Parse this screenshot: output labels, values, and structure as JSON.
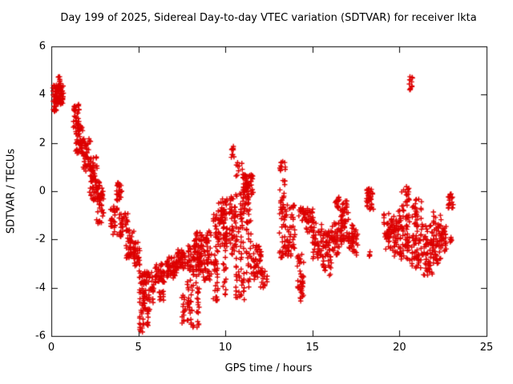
{
  "chart_data": {
    "type": "scatter",
    "title": "Day 199 of 2025, Sidereal Day-to-day VTEC variation (SDTVAR) for receiver lkta",
    "xlabel": "GPS time / hours",
    "ylabel": "SDTVAR / TECUs",
    "xlim": [
      0,
      25
    ],
    "ylim": [
      -6,
      6
    ],
    "x_ticks": [
      0,
      5,
      10,
      15,
      20,
      25
    ],
    "y_ticks": [
      -6,
      -4,
      -2,
      0,
      2,
      4,
      6
    ],
    "grid": false,
    "legend": "none",
    "marker": "plus",
    "marker_color": "#dd0000",
    "axis_color": "#000000",
    "background": "#ffffff",
    "clusters": [
      {
        "t": [
          0.05,
          0.7
        ],
        "v": [
          3.6,
          4.4
        ],
        "n": 90
      },
      {
        "t": [
          0.4,
          0.55
        ],
        "v": [
          4.3,
          4.75
        ],
        "n": 12
      },
      {
        "t": [
          0.1,
          0.3
        ],
        "v": [
          3.3,
          3.6
        ],
        "n": 10
      },
      {
        "t": [
          1.25,
          1.6
        ],
        "v": [
          2.6,
          3.6
        ],
        "n": 35
      },
      {
        "t": [
          1.4,
          1.8
        ],
        "v": [
          1.5,
          2.7
        ],
        "n": 45
      },
      {
        "t": [
          1.8,
          2.3
        ],
        "v": [
          0.8,
          2.2
        ],
        "n": 50
      },
      {
        "t": [
          2.2,
          2.7
        ],
        "v": [
          -0.4,
          1.5
        ],
        "n": 60
      },
      {
        "t": [
          2.6,
          3.0
        ],
        "v": [
          -1.4,
          0.4
        ],
        "n": 50
      },
      {
        "t": [
          3.4,
          3.8
        ],
        "v": [
          -1.8,
          -0.6
        ],
        "n": 30
      },
      {
        "t": [
          3.7,
          4.05
        ],
        "v": [
          -0.4,
          0.35
        ],
        "n": 25
      },
      {
        "t": [
          3.9,
          4.4
        ],
        "v": [
          -2.0,
          -0.9
        ],
        "n": 35
      },
      {
        "t": [
          4.3,
          4.8
        ],
        "v": [
          -2.8,
          -1.6
        ],
        "n": 40
      },
      {
        "t": [
          4.7,
          5.1
        ],
        "v": [
          -3.1,
          -2.1
        ],
        "n": 30
      },
      {
        "t": [
          5.05,
          5.35
        ],
        "v": [
          -5.85,
          -3.3
        ],
        "n": 45
      },
      {
        "t": [
          5.3,
          5.9
        ],
        "v": [
          -4.9,
          -3.3
        ],
        "n": 55
      },
      {
        "t": [
          5.5,
          5.7
        ],
        "v": [
          -5.6,
          -4.9
        ],
        "n": 10
      },
      {
        "t": [
          5.9,
          6.5
        ],
        "v": [
          -3.8,
          -3.0
        ],
        "n": 45
      },
      {
        "t": [
          6.2,
          6.6
        ],
        "v": [
          -4.7,
          -4.1
        ],
        "n": 12
      },
      {
        "t": [
          6.6,
          7.2
        ],
        "v": [
          -3.6,
          -2.7
        ],
        "n": 55
      },
      {
        "t": [
          7.2,
          7.7
        ],
        "v": [
          -3.3,
          -2.4
        ],
        "n": 45
      },
      {
        "t": [
          7.5,
          7.75
        ],
        "v": [
          -5.5,
          -4.3
        ],
        "n": 15
      },
      {
        "t": [
          7.8,
          8.2
        ],
        "v": [
          -5.7,
          -2.2
        ],
        "n": 60
      },
      {
        "t": [
          8.2,
          8.7
        ],
        "v": [
          -3.3,
          -1.7
        ],
        "n": 70
      },
      {
        "t": [
          8.3,
          8.5
        ],
        "v": [
          -5.7,
          -3.4
        ],
        "n": 20
      },
      {
        "t": [
          8.7,
          9.2
        ],
        "v": [
          -3.7,
          -1.6
        ],
        "n": 55
      },
      {
        "t": [
          9.3,
          9.6
        ],
        "v": [
          -4.6,
          -0.7
        ],
        "n": 50
      },
      {
        "t": [
          9.6,
          10.1
        ],
        "v": [
          -2.3,
          -0.3
        ],
        "n": 70
      },
      {
        "t": [
          9.85,
          10.05
        ],
        "v": [
          -4.3,
          -2.3
        ],
        "n": 15
      },
      {
        "t": [
          10.2,
          10.6
        ],
        "v": [
          -2.7,
          -0.2
        ],
        "n": 45
      },
      {
        "t": [
          10.3,
          10.5
        ],
        "v": [
          1.4,
          1.9
        ],
        "n": 10
      },
      {
        "t": [
          10.6,
          11.1
        ],
        "v": [
          -4.5,
          1.2
        ],
        "n": 80
      },
      {
        "t": [
          11.0,
          11.6
        ],
        "v": [
          -1.0,
          0.7
        ],
        "n": 70
      },
      {
        "t": [
          11.2,
          11.5
        ],
        "v": [
          -4.0,
          -1.2
        ],
        "n": 30
      },
      {
        "t": [
          11.6,
          12.1
        ],
        "v": [
          -3.7,
          -2.2
        ],
        "n": 45
      },
      {
        "t": [
          12.0,
          12.4
        ],
        "v": [
          -4.0,
          -3.2
        ],
        "n": 18
      },
      {
        "t": [
          13.1,
          13.45
        ],
        "v": [
          -2.9,
          1.25
        ],
        "n": 55
      },
      {
        "t": [
          13.4,
          14.0
        ],
        "v": [
          -2.7,
          -0.5
        ],
        "n": 55
      },
      {
        "t": [
          14.1,
          14.5
        ],
        "v": [
          -4.6,
          -2.6
        ],
        "n": 40
      },
      {
        "t": [
          14.2,
          14.6
        ],
        "v": [
          -1.3,
          -0.6
        ],
        "n": 20
      },
      {
        "t": [
          14.6,
          15.1
        ],
        "v": [
          -1.7,
          -0.7
        ],
        "n": 35
      },
      {
        "t": [
          15.0,
          15.6
        ],
        "v": [
          -2.8,
          -1.2
        ],
        "n": 45
      },
      {
        "t": [
          15.6,
          16.1
        ],
        "v": [
          -3.5,
          -1.6
        ],
        "n": 55
      },
      {
        "t": [
          16.1,
          16.6
        ],
        "v": [
          -2.7,
          -1.3
        ],
        "n": 40
      },
      {
        "t": [
          16.3,
          16.55
        ],
        "v": [
          -0.7,
          -0.2
        ],
        "n": 15
      },
      {
        "t": [
          16.6,
          17.1
        ],
        "v": [
          -2.2,
          -0.4
        ],
        "n": 60
      },
      {
        "t": [
          17.1,
          17.6
        ],
        "v": [
          -2.7,
          -1.4
        ],
        "n": 40
      },
      {
        "t": [
          18.1,
          18.5
        ],
        "v": [
          -0.8,
          0.1
        ],
        "n": 35
      },
      {
        "t": [
          18.25,
          18.35
        ],
        "v": [
          -2.8,
          -2.5
        ],
        "n": 4
      },
      {
        "t": [
          19.1,
          19.6
        ],
        "v": [
          -2.4,
          -0.9
        ],
        "n": 45
      },
      {
        "t": [
          19.6,
          20.1
        ],
        "v": [
          -2.7,
          -0.8
        ],
        "n": 50
      },
      {
        "t": [
          20.1,
          20.6
        ],
        "v": [
          -3.0,
          0.2
        ],
        "n": 70
      },
      {
        "t": [
          20.55,
          20.75
        ],
        "v": [
          4.2,
          4.75
        ],
        "n": 12
      },
      {
        "t": [
          20.7,
          21.3
        ],
        "v": [
          -3.2,
          -0.3
        ],
        "n": 75
      },
      {
        "t": [
          21.3,
          21.9
        ],
        "v": [
          -3.5,
          -1.4
        ],
        "n": 60
      },
      {
        "t": [
          21.9,
          22.4
        ],
        "v": [
          -3.0,
          -0.8
        ],
        "n": 55
      },
      {
        "t": [
          22.4,
          22.7
        ],
        "v": [
          -2.5,
          -1.4
        ],
        "n": 25
      },
      {
        "t": [
          22.8,
          23.1
        ],
        "v": [
          -0.7,
          -0.1
        ],
        "n": 20
      },
      {
        "t": [
          22.9,
          23.05
        ],
        "v": [
          -2.2,
          -1.9
        ],
        "n": 6
      }
    ]
  }
}
